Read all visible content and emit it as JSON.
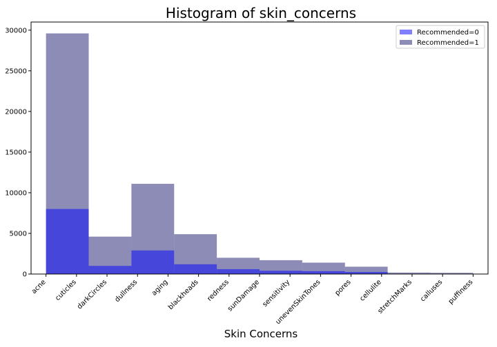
{
  "chart_data": {
    "type": "bar",
    "title": "Histogram of skin_concerns",
    "xlabel": "Skin Concerns",
    "ylabel": "",
    "categories": [
      "acne",
      "cuticles",
      "darkCircles",
      "dullness",
      "aging",
      "blackheads",
      "redness",
      "sunDamage",
      "sensitivity",
      "unevenSkinTones",
      "pores",
      "cellulite",
      "stretchMarks",
      "calluses",
      "puffiness"
    ],
    "bins": [
      {
        "start": 0,
        "end": 2,
        "r0": 8000,
        "r1": 29600
      },
      {
        "start": 2,
        "end": 4,
        "r0": 1000,
        "r1": 4600
      },
      {
        "start": 4,
        "end": 6,
        "r0": 2900,
        "r1": 11100
      },
      {
        "start": 6,
        "end": 8,
        "r0": 1200,
        "r1": 4900
      },
      {
        "start": 8,
        "end": 10,
        "r0": 600,
        "r1": 2000
      },
      {
        "start": 10,
        "end": 12,
        "r0": 400,
        "r1": 1700
      },
      {
        "start": 12,
        "end": 14,
        "r0": 350,
        "r1": 1400
      },
      {
        "start": 14,
        "end": 16,
        "r0": 250,
        "r1": 900
      },
      {
        "start": 16,
        "end": 18,
        "r0": 30,
        "r1": 180
      },
      {
        "start": 18,
        "end": 20,
        "r0": 20,
        "r1": 150
      }
    ],
    "series": [
      {
        "name": "Recommended=0",
        "color": "#0000ff",
        "alpha": 0.5
      },
      {
        "name": "Recommended=1",
        "color": "#191970",
        "alpha": 0.5
      }
    ],
    "yticks": [
      0,
      5000,
      10000,
      15000,
      20000,
      25000,
      30000
    ],
    "ylim": [
      0,
      31000
    ],
    "xlim": [
      -0.7,
      20.7
    ],
    "grid": false,
    "legend": "top-right"
  }
}
